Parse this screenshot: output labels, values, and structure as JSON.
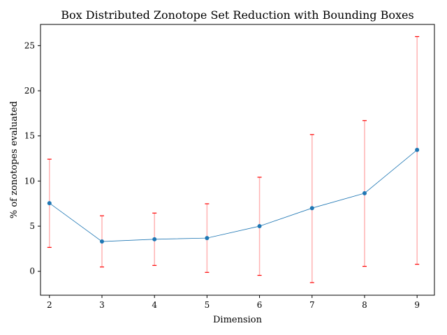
{
  "chart_data": {
    "type": "line",
    "title": "Box Distributed Zonotope Set Reduction with Bounding Boxes",
    "xlabel": "Dimension",
    "ylabel": "% of zonotopes evaluated",
    "x": [
      2,
      3,
      4,
      5,
      6,
      7,
      8,
      9
    ],
    "xticks": [
      2,
      3,
      4,
      5,
      6,
      7,
      8,
      9
    ],
    "yticks": [
      0,
      5,
      10,
      15,
      20,
      25
    ],
    "xlim": [
      1.83,
      9.33
    ],
    "ylim": [
      -2.65,
      27.35
    ],
    "series": [
      {
        "y": [
          7.55,
          3.3,
          3.55,
          3.68,
          5.0,
          7.0,
          8.65,
          13.45
        ],
        "err_low": [
          2.65,
          0.48,
          0.65,
          -0.12,
          -0.45,
          -1.25,
          0.55,
          0.78
        ],
        "err_high": [
          12.42,
          6.15,
          6.45,
          7.48,
          10.42,
          15.15,
          16.7,
          26.0
        ],
        "line_color": "#1f77b4",
        "marker_color": "#1f77b4",
        "errorbar_color": "#ffb3b3",
        "cap_color": "#ff0000"
      }
    ],
    "grid": false,
    "legend": "none"
  }
}
